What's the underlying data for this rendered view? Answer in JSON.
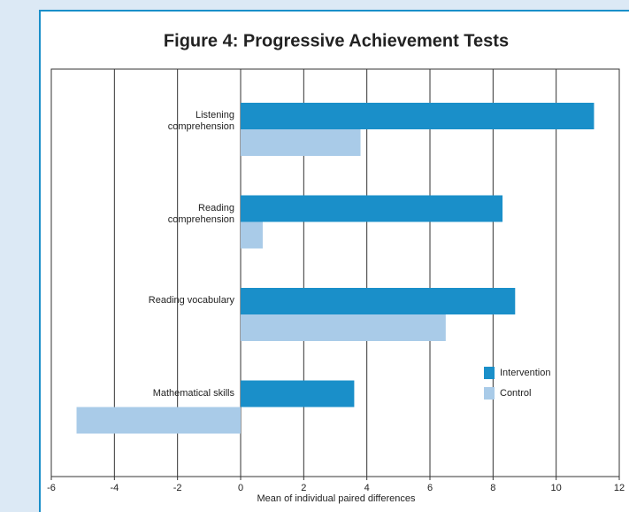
{
  "chart_data": {
    "type": "bar",
    "orientation": "horizontal",
    "title": "Figure 4: Progressive Achievement Tests",
    "xlabel": "Mean of individual paired differences",
    "categories": [
      "Listening comprehension",
      "Reading comprehension",
      "Reading vocabulary",
      "Mathematical skills"
    ],
    "series": [
      {
        "name": "Intervention",
        "color": "#1a8fc9",
        "values": [
          11.2,
          8.3,
          8.7,
          3.6
        ]
      },
      {
        "name": "Control",
        "color": "#a9cbe8",
        "values": [
          3.8,
          0.7,
          6.5,
          -5.2
        ]
      }
    ],
    "xlim": [
      -6,
      12
    ],
    "xticks": [
      -6,
      -4,
      -2,
      0,
      2,
      4,
      6,
      8,
      10,
      12
    ],
    "grid": true,
    "legend": "lower right"
  }
}
